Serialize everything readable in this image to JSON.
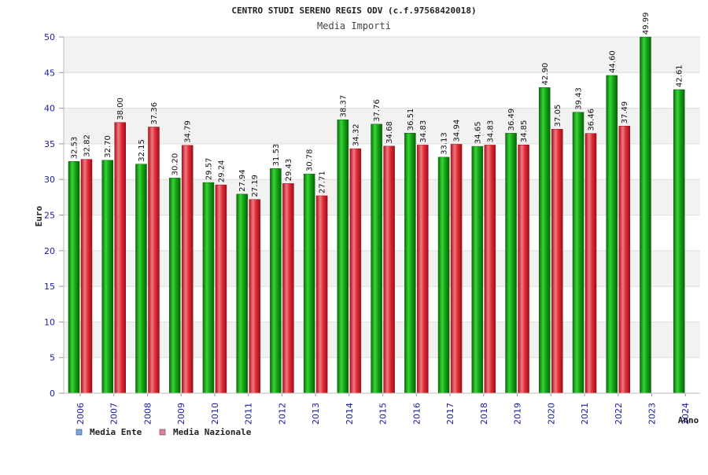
{
  "chart_data": {
    "type": "bar",
    "title": "CENTRO STUDI SERENO REGIS ODV (c.f.97568420018)",
    "subtitle": "Media Importi",
    "xlabel": "Anno",
    "ylabel": "Euro",
    "ylim": [
      0,
      50
    ],
    "yticks": [
      0,
      5,
      10,
      15,
      20,
      25,
      30,
      35,
      40,
      45,
      50
    ],
    "grid": true,
    "legend_position": "bottom-left",
    "categories": [
      "2006",
      "2007",
      "2008",
      "2009",
      "2010",
      "2011",
      "2012",
      "2013",
      "2014",
      "2015",
      "2016",
      "2017",
      "2018",
      "2019",
      "2020",
      "2021",
      "2022",
      "2023",
      "2024"
    ],
    "series": [
      {
        "name": "Media Ente",
        "legend_color": "#6fa8e8",
        "bar_color": "#19a319",
        "values": [
          32.53,
          32.7,
          32.15,
          30.2,
          29.57,
          27.94,
          31.53,
          30.78,
          38.37,
          37.76,
          36.51,
          33.13,
          34.65,
          36.49,
          42.9,
          39.43,
          44.6,
          49.99,
          42.61
        ],
        "labels": [
          "32.53",
          "32.70",
          "32.15",
          "30.20",
          "29.57",
          "27.94",
          "31.53",
          "30.78",
          "38.37",
          "37.76",
          "36.51",
          "33.13",
          "34.65",
          "36.49",
          "42.90",
          "39.43",
          "44.60",
          "49.99",
          "42.61"
        ]
      },
      {
        "name": "Media Nazionale",
        "legend_color": "#e87fa8",
        "bar_color": "#e0303a",
        "values": [
          32.82,
          38.0,
          37.36,
          34.79,
          29.24,
          27.19,
          29.43,
          27.71,
          34.32,
          34.68,
          34.83,
          34.94,
          34.83,
          34.85,
          37.05,
          36.46,
          37.49,
          null,
          null
        ],
        "labels": [
          "32.82",
          "38.00",
          "37.36",
          "34.79",
          "29.24",
          "27.19",
          "29.43",
          "27.71",
          "34.32",
          "34.68",
          "34.83",
          "34.94",
          "34.83",
          "34.85",
          "37.05",
          "36.46",
          "37.49",
          null,
          null
        ]
      }
    ]
  }
}
